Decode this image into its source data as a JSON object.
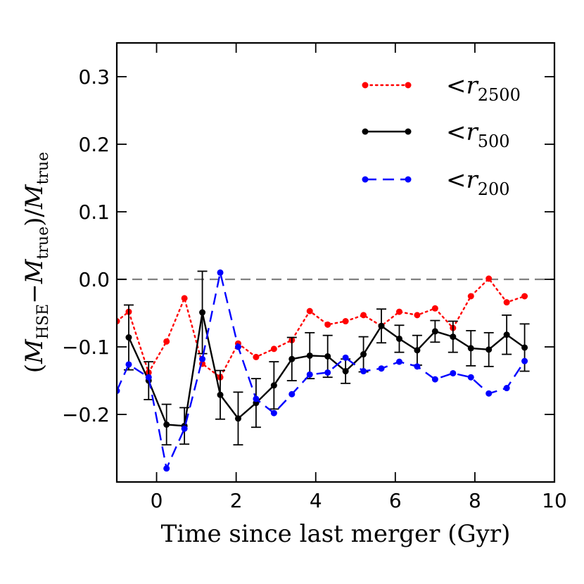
{
  "chart_data": {
    "type": "line",
    "title": "",
    "xlabel": "Time since last merger (Gyr)",
    "ylabel_parts": {
      "open": "(",
      "m1": "M",
      "m1_sub": "HSE",
      "minus": "−",
      "m2": "M",
      "m2_sub": "true",
      "close": ")/",
      "m3": "M",
      "m3_sub": "true"
    },
    "xlim": [
      -1,
      10
    ],
    "ylim": [
      -0.3,
      0.35
    ],
    "xticks": [
      0,
      2,
      4,
      6,
      8,
      10
    ],
    "xtick_labels": [
      "0",
      "2",
      "4",
      "6",
      "8",
      "10"
    ],
    "yticks": [
      0.3,
      0.2,
      0.1,
      0.0,
      -0.1,
      -0.2
    ],
    "ytick_labels": [
      "0.3",
      "0.2",
      "0.1",
      "0.0",
      "−0.1",
      "−0.2"
    ],
    "reference_line": 0.0,
    "legend_position": "top-right",
    "series": [
      {
        "name": "r2500",
        "legend_prefix": "<",
        "legend_symbol": "r",
        "legend_sub": "2500",
        "color": "#ff0000",
        "style": "dotted",
        "x": [
          -1.0,
          -0.7,
          -0.2,
          0.25,
          0.7,
          1.15,
          1.6,
          2.05,
          2.5,
          2.95,
          3.4,
          3.85,
          4.3,
          4.75,
          5.2,
          5.65,
          6.1,
          6.55,
          7.0,
          7.45,
          7.9,
          8.35,
          8.8,
          9.25
        ],
        "y": [
          -0.062,
          -0.048,
          -0.138,
          -0.092,
          -0.028,
          -0.125,
          -0.145,
          -0.095,
          -0.115,
          -0.103,
          -0.09,
          -0.047,
          -0.067,
          -0.062,
          -0.053,
          -0.069,
          -0.048,
          -0.053,
          -0.043,
          -0.072,
          -0.025,
          0.001,
          -0.034,
          -0.025
        ]
      },
      {
        "name": "r500",
        "legend_prefix": "<",
        "legend_symbol": "r",
        "legend_sub": "500",
        "color": "#000000",
        "style": "solid",
        "x": [
          -0.7,
          -0.2,
          0.25,
          0.7,
          1.15,
          1.6,
          2.05,
          2.5,
          2.95,
          3.4,
          3.85,
          4.3,
          4.75,
          5.2,
          5.65,
          6.1,
          6.55,
          7.0,
          7.45,
          7.9,
          8.35,
          8.8,
          9.25
        ],
        "y": [
          -0.086,
          -0.15,
          -0.215,
          -0.217,
          -0.049,
          -0.171,
          -0.206,
          -0.183,
          -0.157,
          -0.118,
          -0.113,
          -0.114,
          -0.136,
          -0.111,
          -0.069,
          -0.088,
          -0.105,
          -0.077,
          -0.085,
          -0.102,
          -0.104,
          -0.082,
          -0.101
        ],
        "err": [
          0.048,
          0.028,
          0.03,
          0.027,
          0.061,
          0.036,
          0.039,
          0.036,
          0.035,
          0.032,
          0.034,
          0.031,
          0.018,
          0.026,
          0.025,
          0.02,
          0.022,
          0.016,
          0.023,
          0.026,
          0.025,
          0.029,
          0.035
        ]
      },
      {
        "name": "r200",
        "legend_prefix": "<",
        "legend_symbol": "r",
        "legend_sub": "200",
        "color": "#0000ff",
        "style": "dashed",
        "x": [
          -1.0,
          -0.7,
          -0.2,
          0.25,
          0.7,
          1.15,
          1.6,
          2.05,
          2.5,
          2.95,
          3.4,
          3.85,
          4.3,
          4.75,
          5.2,
          5.65,
          6.1,
          6.55,
          7.0,
          7.45,
          7.9,
          8.35,
          8.8,
          9.25
        ],
        "y": [
          -0.165,
          -0.126,
          -0.145,
          -0.28,
          -0.221,
          -0.118,
          0.01,
          -0.1,
          -0.177,
          -0.198,
          -0.17,
          -0.141,
          -0.138,
          -0.116,
          -0.136,
          -0.132,
          -0.122,
          -0.129,
          -0.148,
          -0.139,
          -0.145,
          -0.169,
          -0.161,
          -0.121
        ]
      }
    ]
  }
}
